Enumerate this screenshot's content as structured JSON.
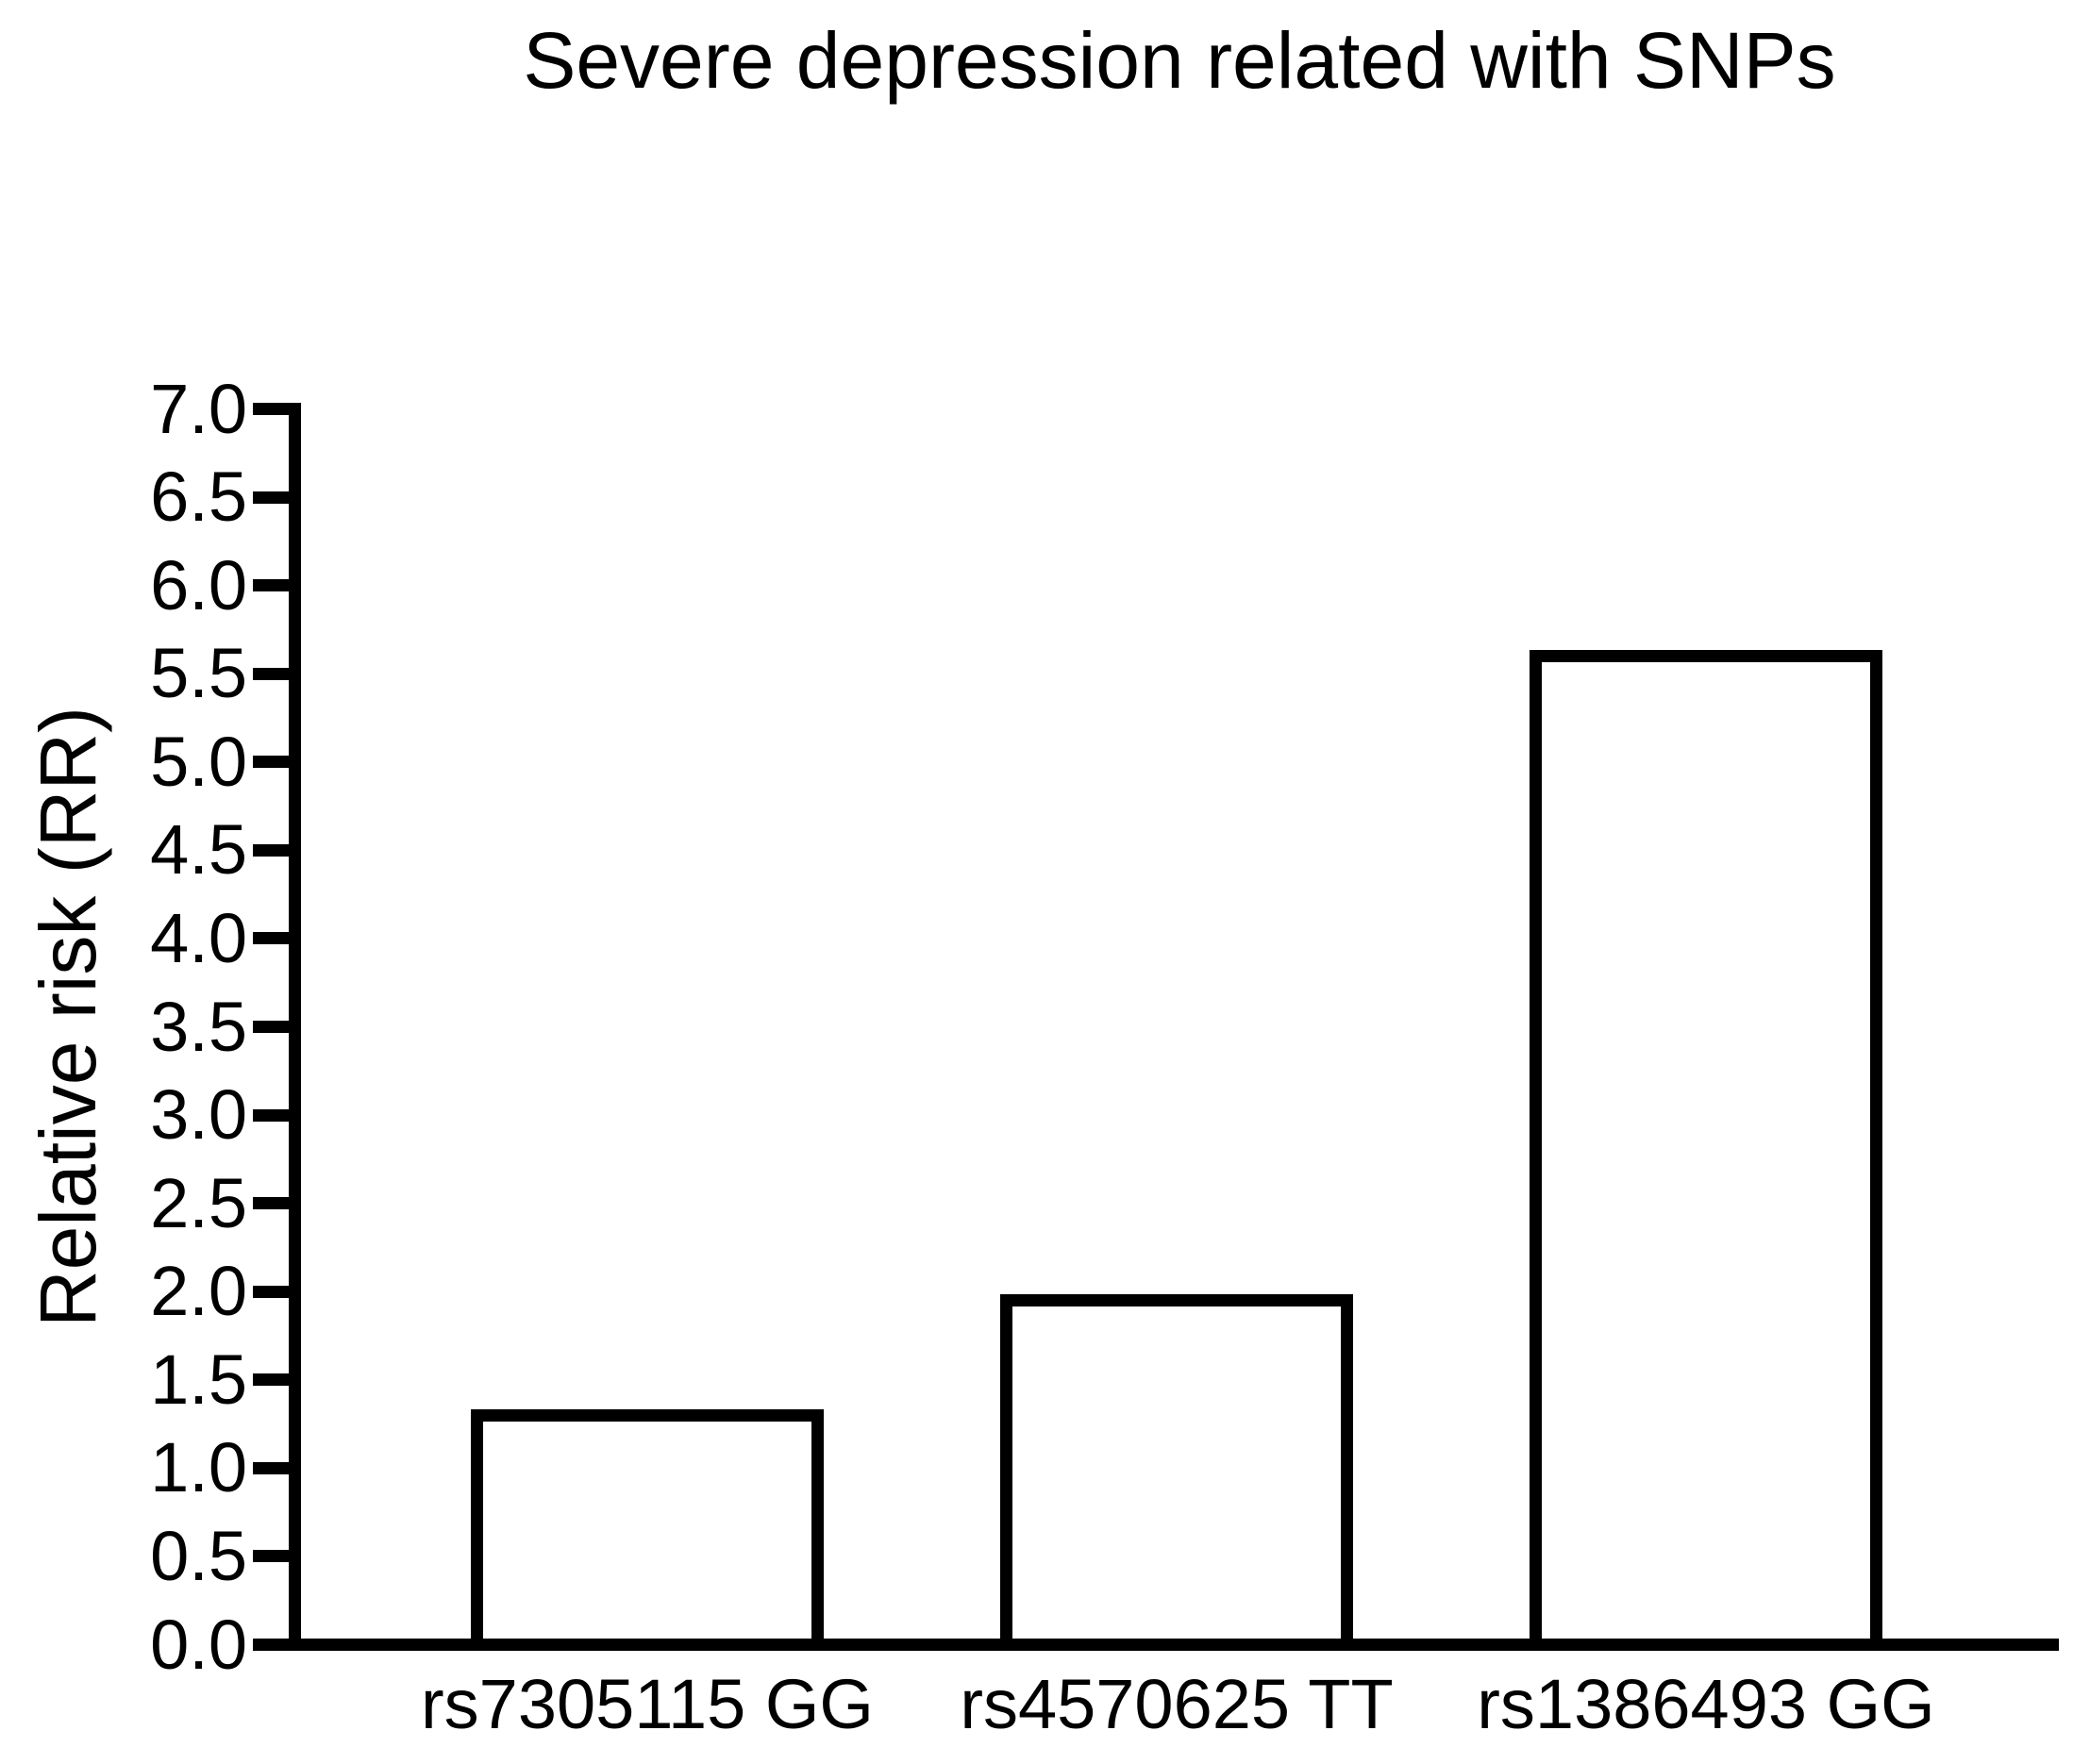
{
  "chart_data": {
    "type": "bar",
    "title": "Severe depression related with SNPs",
    "xlabel": "",
    "ylabel": "Relative risk (RR)",
    "categories": [
      "rs7305115 GG",
      "rs4570625 TT",
      "rs1386493 GG"
    ],
    "values": [
      1.3,
      1.95,
      5.6
    ],
    "ylim": [
      0.0,
      7.0
    ],
    "ytick_step": 0.5,
    "ytick_labels": [
      "0.0",
      "0.5",
      "1.0",
      "1.5",
      "2.0",
      "2.5",
      "3.0",
      "3.5",
      "4.0",
      "4.5",
      "5.0",
      "5.5",
      "6.0",
      "6.5",
      "7.0"
    ],
    "grid": false,
    "legend": "none",
    "bar_fill": "#ffffff",
    "bar_border": "#000000",
    "axis_color": "#000000",
    "background": "#ffffff"
  }
}
